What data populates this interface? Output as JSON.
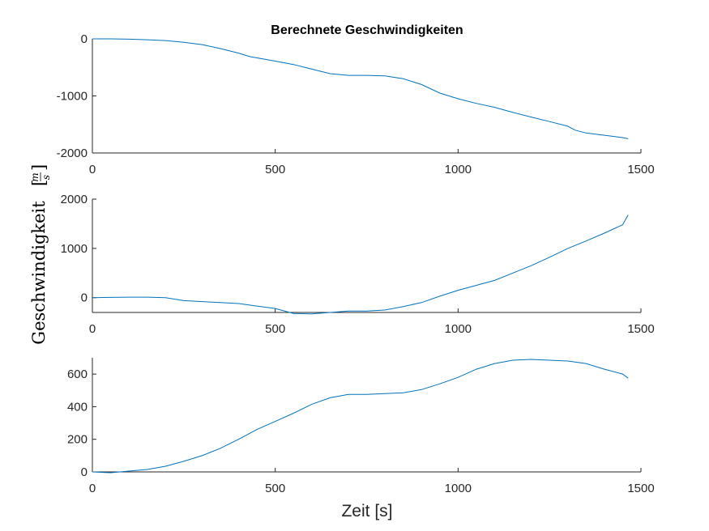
{
  "title": "Berechnete Geschwindigkeiten",
  "xlabel": "Zeit [s]",
  "ylabel": {
    "main": "Geschwindigkeit",
    "unit_num": "m",
    "unit_den": "s"
  },
  "colors": {
    "series": "#0072BD",
    "axis": "#262626"
  },
  "chart_data": [
    {
      "type": "line",
      "title": "Berechnete Geschwindigkeiten",
      "xlabel": "",
      "ylabel": "",
      "xlim": [
        0,
        1500
      ],
      "ylim": [
        -2000,
        0
      ],
      "xticks": [
        0,
        500,
        1000,
        1500
      ],
      "yticks": [
        -2000,
        -1000,
        0
      ],
      "xtick_labels": [
        "0",
        "500",
        "1000",
        "1500"
      ],
      "ytick_labels": [
        "-2000",
        "-1000",
        "0"
      ],
      "grid": false,
      "series": [
        {
          "x": [
            0,
            50,
            100,
            150,
            200,
            250,
            300,
            350,
            400,
            430,
            500,
            550,
            600,
            650,
            700,
            750,
            800,
            850,
            900,
            950,
            1000,
            1050,
            1100,
            1150,
            1200,
            1250,
            1300,
            1320,
            1350,
            1400,
            1450,
            1465
          ],
          "y": [
            0,
            0,
            -5,
            -15,
            -30,
            -60,
            -100,
            -170,
            -250,
            -310,
            -390,
            -450,
            -530,
            -610,
            -640,
            -640,
            -650,
            -700,
            -800,
            -950,
            -1050,
            -1130,
            -1200,
            -1290,
            -1370,
            -1450,
            -1530,
            -1600,
            -1650,
            -1690,
            -1730,
            -1750
          ]
        }
      ]
    },
    {
      "type": "line",
      "xlabel": "",
      "ylabel": "Geschwindigkeit [m/s]",
      "xlim": [
        0,
        1500
      ],
      "ylim": [
        -300,
        2000
      ],
      "xticks": [
        0,
        500,
        1000,
        1500
      ],
      "yticks": [
        0,
        1000,
        2000
      ],
      "xtick_labels": [
        "0",
        "500",
        "1000",
        "1500"
      ],
      "ytick_labels": [
        "0",
        "1000",
        "2000"
      ],
      "grid": false,
      "series": [
        {
          "x": [
            0,
            50,
            100,
            150,
            200,
            250,
            300,
            350,
            400,
            450,
            500,
            550,
            600,
            650,
            700,
            750,
            800,
            850,
            900,
            950,
            1000,
            1050,
            1100,
            1150,
            1200,
            1250,
            1300,
            1350,
            1400,
            1450,
            1465
          ],
          "y": [
            0,
            5,
            10,
            10,
            0,
            -60,
            -80,
            -100,
            -120,
            -170,
            -220,
            -320,
            -330,
            -300,
            -270,
            -270,
            -250,
            -180,
            -100,
            30,
            150,
            250,
            350,
            500,
            650,
            820,
            1000,
            1150,
            1310,
            1480,
            1680
          ]
        }
      ]
    },
    {
      "type": "line",
      "xlabel": "Zeit [s]",
      "ylabel": "",
      "xlim": [
        0,
        1500
      ],
      "ylim": [
        0,
        700
      ],
      "xticks": [
        0,
        500,
        1000,
        1500
      ],
      "yticks": [
        0,
        200,
        400,
        600
      ],
      "xtick_labels": [
        "0",
        "500",
        "1000",
        "1500"
      ],
      "ytick_labels": [
        "0",
        "200",
        "400",
        "600"
      ],
      "grid": false,
      "series": [
        {
          "x": [
            0,
            50,
            100,
            150,
            200,
            250,
            300,
            350,
            400,
            450,
            500,
            550,
            600,
            650,
            700,
            750,
            800,
            850,
            900,
            950,
            1000,
            1050,
            1100,
            1150,
            1200,
            1250,
            1300,
            1350,
            1400,
            1450,
            1465
          ],
          "y": [
            0,
            -5,
            5,
            15,
            35,
            65,
            100,
            145,
            200,
            260,
            310,
            360,
            415,
            455,
            475,
            475,
            480,
            485,
            505,
            540,
            580,
            630,
            665,
            685,
            690,
            685,
            680,
            665,
            630,
            600,
            575
          ]
        }
      ]
    }
  ]
}
